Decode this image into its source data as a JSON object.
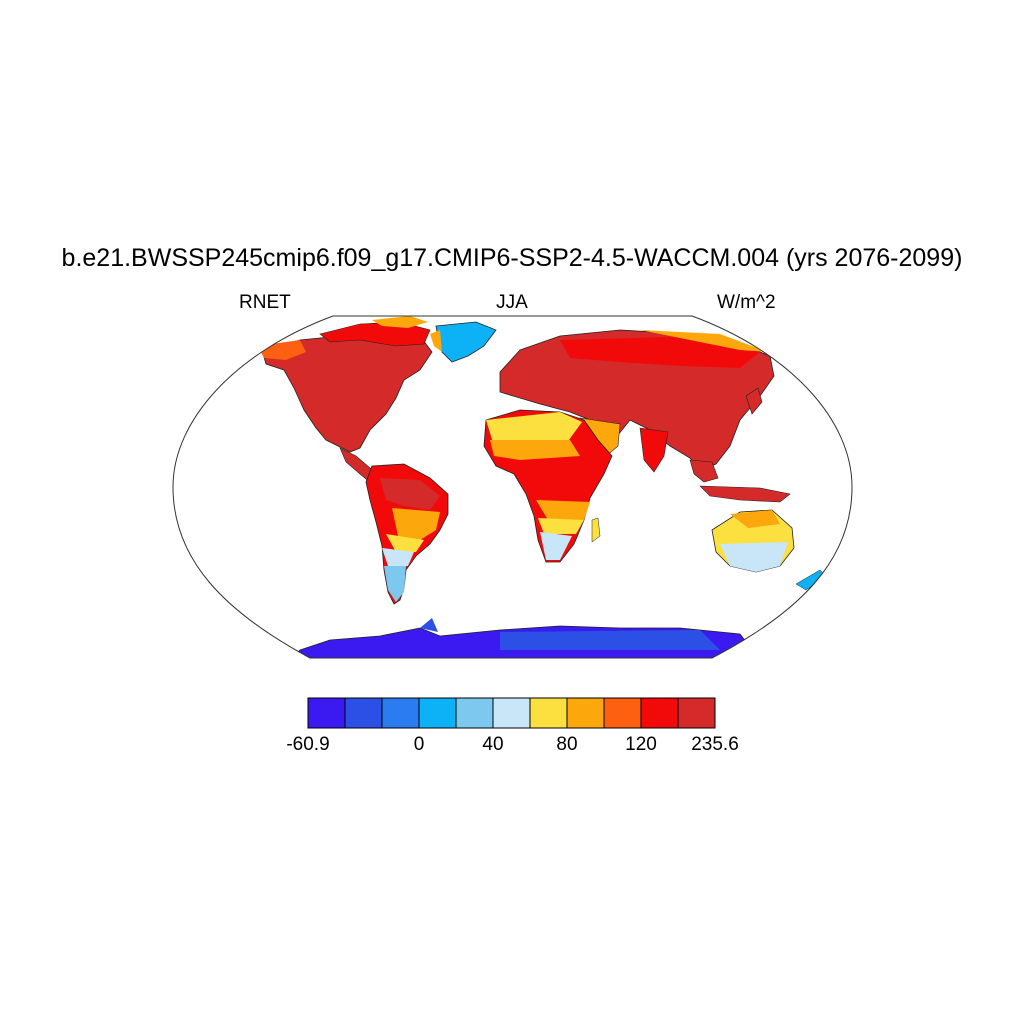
{
  "title": "b.e21.BWSSP245cmip6.f09_g17.CMIP6-SSP2-4.5-WACCM.004 (yrs 2076-2099)",
  "left_label": "RNET",
  "center_label": "JJA",
  "right_label": "W/m^2",
  "colorbar": {
    "colors": [
      "#3a1af0",
      "#2c4fe6",
      "#2a7cf0",
      "#0cb2f5",
      "#7cc8ee",
      "#c8e6f8",
      "#fce040",
      "#fca80c",
      "#fc6010",
      "#f20a0a",
      "#d42a2a"
    ],
    "ticks": [
      {
        "label": "-60.9",
        "boundary": 0
      },
      {
        "label": "0",
        "boundary": 3
      },
      {
        "label": "40",
        "boundary": 5
      },
      {
        "label": "80",
        "boundary": 7
      },
      {
        "label": "120",
        "boundary": 9
      },
      {
        "label": "235.6",
        "boundary": 11
      }
    ]
  }
}
